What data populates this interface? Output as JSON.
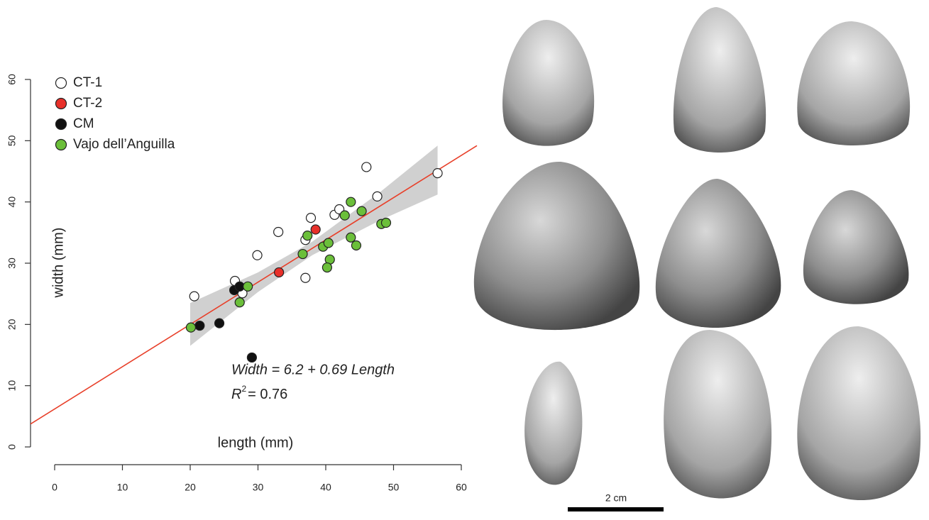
{
  "chart_data": {
    "type": "scatter",
    "xlabel": "length (mm)",
    "ylabel": "width (mm)",
    "xlim": [
      0,
      60
    ],
    "ylim": [
      0,
      60
    ],
    "xticks": [
      0,
      10,
      20,
      30,
      40,
      50,
      60
    ],
    "yticks": [
      0,
      10,
      20,
      30,
      40,
      50,
      60
    ],
    "legend": "upper left",
    "series": [
      {
        "name": "CT-1",
        "color": "#ffffff",
        "x": [
          20.6,
          26.6,
          27.7,
          29.9,
          33.0,
          37.0,
          37.0,
          37.8,
          41.3,
          42.0,
          46.0,
          47.6,
          56.5
        ],
        "y": [
          24.6,
          27.1,
          25.1,
          31.3,
          35.1,
          33.8,
          27.6,
          37.4,
          37.9,
          38.8,
          45.7,
          40.9,
          44.7
        ]
      },
      {
        "name": "CT-2",
        "color": "#e8302a",
        "x": [
          33.1,
          38.5
        ],
        "y": [
          28.5,
          35.5
        ]
      },
      {
        "name": "CM",
        "color": "#111111",
        "x": [
          21.4,
          24.3,
          26.5,
          27.3,
          29.1
        ],
        "y": [
          19.8,
          20.2,
          25.6,
          26.2,
          14.6
        ]
      },
      {
        "name": "Vajo dell’Anguilla",
        "color": "#6bbf3a",
        "x": [
          20.1,
          27.3,
          28.5,
          36.6,
          37.3,
          39.6,
          40.4,
          40.6,
          40.2,
          43.7,
          42.8,
          43.7,
          44.5,
          45.3,
          48.2,
          48.9
        ],
        "y": [
          19.5,
          23.6,
          26.2,
          31.5,
          34.5,
          32.7,
          33.3,
          30.6,
          29.3,
          40.0,
          37.8,
          34.2,
          32.9,
          38.5,
          36.4,
          36.6
        ]
      }
    ],
    "regression": {
      "intercept": 6.2,
      "slope": 0.69,
      "color": "#e8402a"
    },
    "confidence_band": {
      "color": "#c8c8c8",
      "x": [
        20,
        30,
        38,
        48,
        56.5
      ],
      "lower": [
        16.5,
        25.3,
        31.3,
        37.0,
        41.2
      ],
      "upper": [
        23.5,
        28.5,
        33.5,
        41.6,
        49.2
      ]
    },
    "equation": "Width = 6.2 + 0.69 Length",
    "r_squared": {
      "symbol": "R",
      "superscript": "2",
      "text": "= 0.76"
    },
    "scale_bar": "2 cm"
  }
}
